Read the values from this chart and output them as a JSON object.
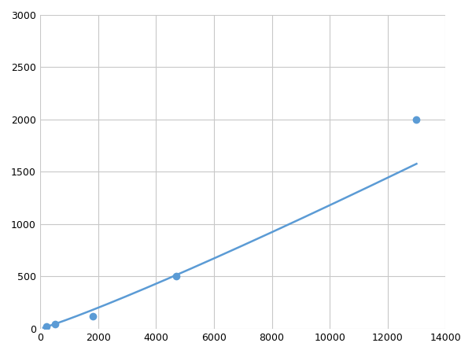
{
  "x": [
    200,
    500,
    1800,
    4700,
    13000
  ],
  "y": [
    20,
    40,
    120,
    500,
    2000
  ],
  "line_color": "#5b9bd5",
  "marker_color": "#5b9bd5",
  "marker_size": 7,
  "xlim": [
    0,
    14000
  ],
  "ylim": [
    0,
    3000
  ],
  "xticks": [
    0,
    2000,
    4000,
    6000,
    8000,
    10000,
    12000,
    14000
  ],
  "yticks": [
    0,
    500,
    1000,
    1500,
    2000,
    2500,
    3000
  ],
  "grid_color": "#c8c8c8",
  "background_color": "#ffffff",
  "line_width": 1.8,
  "figsize": [
    6.0,
    4.5
  ],
  "dpi": 100
}
